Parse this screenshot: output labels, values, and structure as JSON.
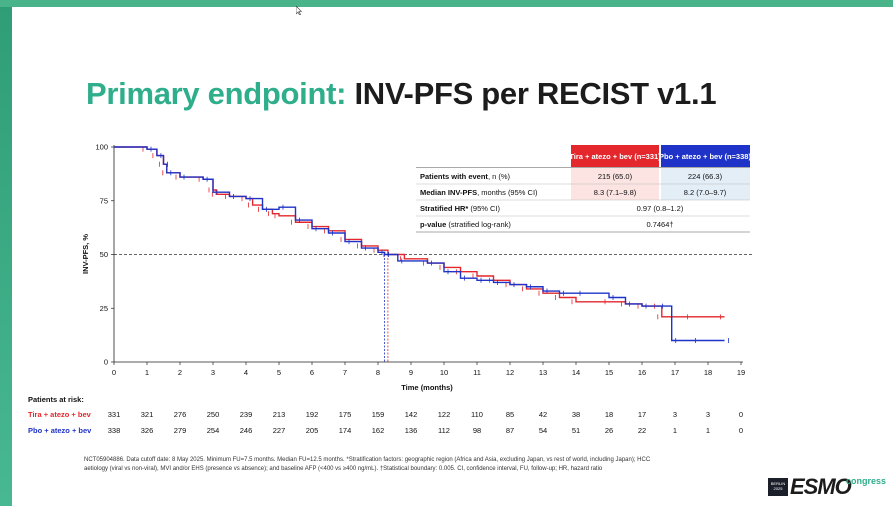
{
  "slide": {
    "title_green": "Primary endpoint:",
    "title_black": "INV-PFS per RECIST v1.1",
    "footnote": "NCT05904886. Data cutoff date: 8 May 2025. Minimum FU=7.5 months. Median FU=12.5 months. *Stratification factors: geographic region (Africa and Asia, excluding Japan, vs rest of world, including Japan); HCC aetiology (viral vs non-viral), MVI and/or EHS (presence vs absence); and baseline AFP (<400 vs ≥400 ng/mL). †Statistical boundary: 0.005. CI, confidence interval, FU, follow-up; HR, hazard ratio",
    "footnote_lead": "NCT05904886.",
    "logo": {
      "box_text": "BERLIN 2025",
      "wordmark": "ESMO",
      "congress": "congress"
    }
  },
  "table": {
    "arm1_header": "Tira + atezo + bev (n=331)",
    "arm2_header": "Pbo + atezo + bev (n=338)",
    "arm1_color": "#e3272c",
    "arm2_color": "#1f33c8",
    "rows": [
      {
        "label_bold": "Patients with event",
        "label_rest": ", n (%)",
        "arm1": "215 (65.0)",
        "arm2": "224 (66.3)"
      },
      {
        "label_bold": "Median INV-PFS",
        "label_rest": ", months (95% CI)",
        "arm1": "8.3 (7.1–9.8)",
        "arm2": "8.2 (7.0–9.7)"
      },
      {
        "label_bold": "Stratified HR*",
        "label_rest": " (95% CI)",
        "combined": "0.97 (0.8–1.2)"
      },
      {
        "label_bold": "p-value",
        "label_rest": " (stratified log-rank)",
        "combined": "0.7464†"
      }
    ]
  },
  "chart_data": {
    "type": "line",
    "xlabel": "Time (months)",
    "ylabel": "INV-PFS, %",
    "xlim": [
      0,
      19
    ],
    "ylim": [
      0,
      100
    ],
    "xticks": [
      0,
      1,
      2,
      3,
      4,
      5,
      6,
      7,
      8,
      9,
      10,
      11,
      12,
      13,
      14,
      15,
      16,
      17,
      18,
      19
    ],
    "yticks": [
      0,
      25,
      50,
      75,
      100
    ],
    "median_reference_line": 50,
    "series": [
      {
        "name": "Tira + atezo + bev",
        "color": "#e3272c",
        "median": 8.3,
        "x": [
          0,
          1.0,
          1.3,
          1.5,
          1.6,
          2.0,
          2.7,
          3.0,
          3.1,
          3.5,
          4.0,
          4.2,
          4.5,
          4.8,
          5.0,
          5.5,
          6.0,
          6.5,
          7.0,
          7.5,
          8.0,
          8.3,
          8.8,
          9.5,
          10.0,
          10.5,
          11.0,
          11.5,
          12.0,
          12.5,
          13.0,
          13.5,
          14.0,
          15.0,
          15.5,
          16.0,
          16.5,
          16.6,
          17.5,
          18.5
        ],
        "y": [
          100,
          99,
          96,
          92,
          88,
          86,
          85,
          80,
          78,
          77,
          76,
          73,
          71,
          69,
          68,
          65,
          63,
          61,
          57,
          54,
          52,
          50,
          48,
          46,
          44,
          42,
          40,
          38,
          36,
          34,
          32,
          30,
          28,
          28,
          27,
          26,
          26,
          21,
          21,
          21
        ]
      },
      {
        "name": "Pbo + atezo + bev",
        "color": "#1f33c8",
        "median": 8.2,
        "x": [
          0,
          1.0,
          1.3,
          1.5,
          1.6,
          2.0,
          2.7,
          3.0,
          3.5,
          4.0,
          4.5,
          5.0,
          5.5,
          6.0,
          6.5,
          7.0,
          7.5,
          8.0,
          8.2,
          8.6,
          9.5,
          10.0,
          10.5,
          11.0,
          11.5,
          12.0,
          12.5,
          13.0,
          13.5,
          14.0,
          15.0,
          15.5,
          16.0,
          16.5,
          16.9,
          17.5,
          18.5
        ],
        "y": [
          100,
          99,
          96,
          92,
          88,
          86,
          85,
          79,
          77,
          76,
          71,
          72,
          66,
          62,
          60,
          56,
          53,
          51,
          50,
          47,
          46,
          42,
          39,
          38,
          37,
          36,
          35,
          33,
          32,
          32,
          30,
          27,
          26,
          26,
          10,
          10,
          10
        ]
      }
    ],
    "at_risk": {
      "title": "Patients at risk:",
      "rows": [
        {
          "label": "Tira + atezo + bev",
          "color": "#e3272c",
          "values": [
            "331",
            "321",
            "276",
            "250",
            "239",
            "213",
            "192",
            "175",
            "159",
            "142",
            "122",
            "110",
            "85",
            "42",
            "38",
            "18",
            "17",
            "3",
            "3",
            "0"
          ]
        },
        {
          "label": "Pbo + atezo + bev",
          "color": "#1f33c8",
          "values": [
            "338",
            "326",
            "279",
            "254",
            "246",
            "227",
            "205",
            "174",
            "162",
            "136",
            "112",
            "98",
            "87",
            "54",
            "51",
            "26",
            "22",
            "1",
            "1",
            "0"
          ]
        }
      ]
    }
  }
}
